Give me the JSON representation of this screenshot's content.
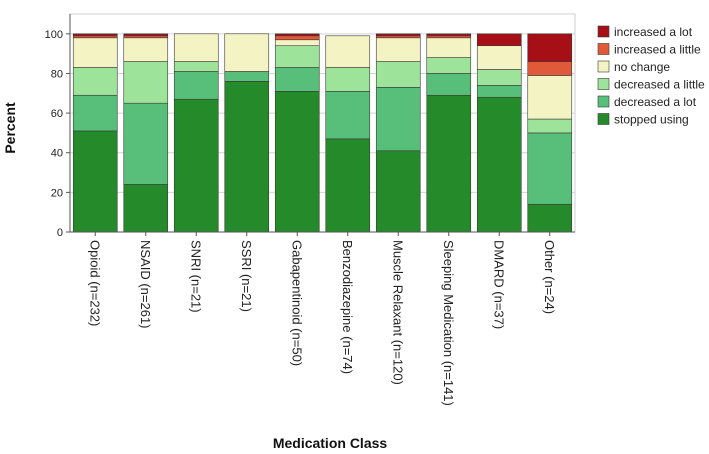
{
  "chart_data": {
    "type": "bar",
    "stacked": true,
    "title": "",
    "xlabel": "Medication Class",
    "ylabel": "Percent",
    "ylim": [
      0,
      110
    ],
    "yticks": [
      0,
      20,
      40,
      60,
      80,
      100
    ],
    "grid": true,
    "legend_position": "right",
    "categories": [
      "Opioid (n=232)",
      "NSAID (n=261)",
      "SNRI (n=21)",
      "SSRI (n=21)",
      "Gabapentinoid (n=50)",
      "Benzodiazepine (n=74)",
      "Muscle Relaxant (n=120)",
      "Sleeping Medication (n=141)",
      "DMARD (n=37)",
      "Other (n=24)"
    ],
    "series": [
      {
        "name": "stopped using",
        "color": "#258a2a",
        "values": [
          51,
          24,
          67,
          76,
          71,
          47,
          41,
          69,
          68,
          14
        ]
      },
      {
        "name": "decreased a lot",
        "color": "#58bf7a",
        "values": [
          18,
          41,
          14,
          5,
          12,
          24,
          32,
          11,
          6,
          36
        ]
      },
      {
        "name": "decreased a little",
        "color": "#9ee39a",
        "values": [
          14,
          21,
          5,
          0,
          11,
          12,
          13,
          8,
          8,
          7
        ]
      },
      {
        "name": "no change",
        "color": "#f3f3c4",
        "values": [
          15,
          12,
          14,
          19,
          3,
          16,
          12,
          10,
          12,
          22
        ]
      },
      {
        "name": "increased a little",
        "color": "#e05a3a",
        "values": [
          1,
          1,
          0,
          0,
          2,
          0,
          1,
          1,
          0,
          7
        ]
      },
      {
        "name": "increased a lot",
        "color": "#a50f15",
        "values": [
          1,
          1,
          0,
          0,
          1,
          0,
          1,
          1,
          6,
          14
        ]
      }
    ]
  }
}
